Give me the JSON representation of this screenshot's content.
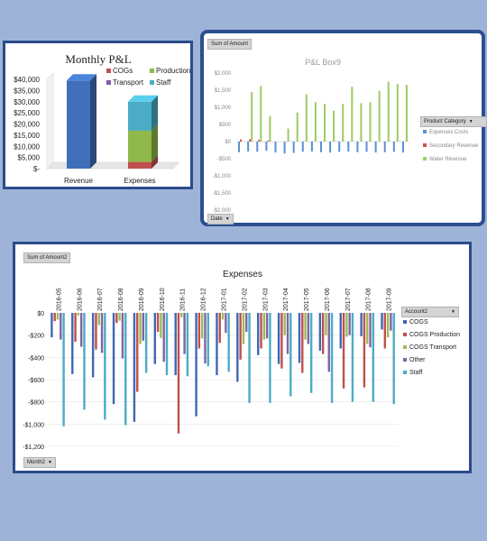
{
  "charts": {
    "pnl": {
      "chart_data": {
        "type": "bar",
        "stacked": true,
        "three_d": true,
        "title": "Monthly P&L",
        "categories": [
          "Revenue",
          "Expenses"
        ],
        "series": [
          {
            "name": "Revenue",
            "color": "#3e6fb8",
            "values": [
              39500,
              0
            ]
          },
          {
            "name": "COGs",
            "color": "#c0504d",
            "values": [
              0,
              3000
            ]
          },
          {
            "name": "Transport",
            "color": "#7f5ca8",
            "values": [
              0,
              0
            ]
          },
          {
            "name": "Production",
            "color": "#8fb94b",
            "values": [
              0,
              14000
            ]
          },
          {
            "name": "Staff",
            "color": "#4bacc6",
            "values": [
              0,
              13000
            ]
          }
        ],
        "legend": [
          "COGs",
          "Production",
          "Transport",
          "Staff"
        ],
        "ylim": [
          0,
          40000
        ],
        "yticks": [
          "$-",
          "$5,000",
          "$10,000",
          "$15,000",
          "$20,000",
          "$25,000",
          "$30,000",
          "$35,000",
          "$40,000"
        ],
        "grid": false,
        "legend_position": "top-right"
      }
    },
    "boxes": {
      "field_label": "Sum of Amount",
      "axis_field_label": "Date",
      "legend_title": "Product Category",
      "chart_data": {
        "type": "bar",
        "title": "P&L Box9",
        "series": [
          {
            "name": "Expenses Costs",
            "color": "#5b8fd6",
            "values": [
              -310,
              -290,
              -300,
              -270,
              -320,
              -350,
              -330,
              -300,
              -290,
              -310,
              -320,
              -300,
              -290,
              -310,
              -300,
              -320,
              -310,
              -300,
              -320
            ]
          },
          {
            "name": "Secondary Revenue",
            "color": "#d05050",
            "values": [
              60,
              70,
              50,
              30,
              0,
              0,
              0,
              0,
              0,
              0,
              0,
              0,
              0,
              0,
              0,
              0,
              0,
              0,
              0
            ]
          },
          {
            "name": "Water Revenue",
            "color": "#9ccc64",
            "values": [
              0,
              1450,
              1620,
              750,
              0,
              380,
              850,
              1380,
              1150,
              1100,
              900,
              1100,
              1600,
              1120,
              1150,
              1480,
              1750,
              1680,
              1650
            ]
          }
        ],
        "ylim": [
          -2000,
          2000
        ],
        "yticks": [
          "$2,000",
          "$1,500",
          "$1,000",
          "$500",
          "$0",
          "-$500",
          "-$1,000",
          "-$1,500",
          "-$2,000"
        ],
        "legend_position": "right",
        "grid": false
      }
    },
    "expenses": {
      "field_label": "Sum of Amount2",
      "axis_field_label": "Month2",
      "legend_title": "Account2",
      "chart_data": {
        "type": "bar",
        "title": "Expenses",
        "categories": [
          "2016-05",
          "2016-06",
          "2016-07",
          "2016-08",
          "2016-09",
          "2016-10",
          "2016-11",
          "2016-12",
          "2017-01",
          "2017-02",
          "2017-03",
          "2017-04",
          "2017-05",
          "2017-06",
          "2017-07",
          "2017-08",
          "2017-09"
        ],
        "series": [
          {
            "name": "COGS",
            "color": "#3f67b4",
            "values": [
              -220,
              -550,
              -580,
              -820,
              -980,
              -460,
              -560,
              -930,
              -560,
              -620,
              -380,
              -460,
              -450,
              -340,
              -320,
              -210,
              -150
            ]
          },
          {
            "name": "COGS Production",
            "color": "#c0504d",
            "values": [
              -75,
              -260,
              -330,
              -90,
              -710,
              -170,
              -1085,
              -320,
              -270,
              -420,
              -320,
              -500,
              -540,
              -370,
              -680,
              -670,
              -320
            ]
          },
          {
            "name": "COGS Transport",
            "color": "#9bbb59",
            "values": [
              -60,
              -25,
              -110,
              -70,
              -280,
              -225,
              -40,
              -230,
              -60,
              -280,
              -240,
              -200,
              -240,
              -200,
              -215,
              -280,
              -220
            ]
          },
          {
            "name": "Other",
            "color": "#8064a2",
            "values": [
              -240,
              -305,
              -360,
              -410,
              -250,
              -440,
              -370,
              -455,
              -180,
              -170,
              -230,
              -370,
              -280,
              -530,
              -200,
              -310,
              -160
            ]
          },
          {
            "name": "Staff",
            "color": "#4bacc6",
            "values": [
              -1020,
              -870,
              -960,
              -1010,
              -540,
              -560,
              -570,
              -480,
              -530,
              -810,
              -810,
              -750,
              -720,
              -810,
              -800,
              -800,
              -820
            ]
          }
        ],
        "ylim": [
          -1200,
          0
        ],
        "yticks": [
          "$0",
          "-$200",
          "-$400",
          "-$600",
          "-$800",
          "-$1,000",
          "-$1,200"
        ],
        "legend_position": "right",
        "grid": true
      }
    }
  }
}
